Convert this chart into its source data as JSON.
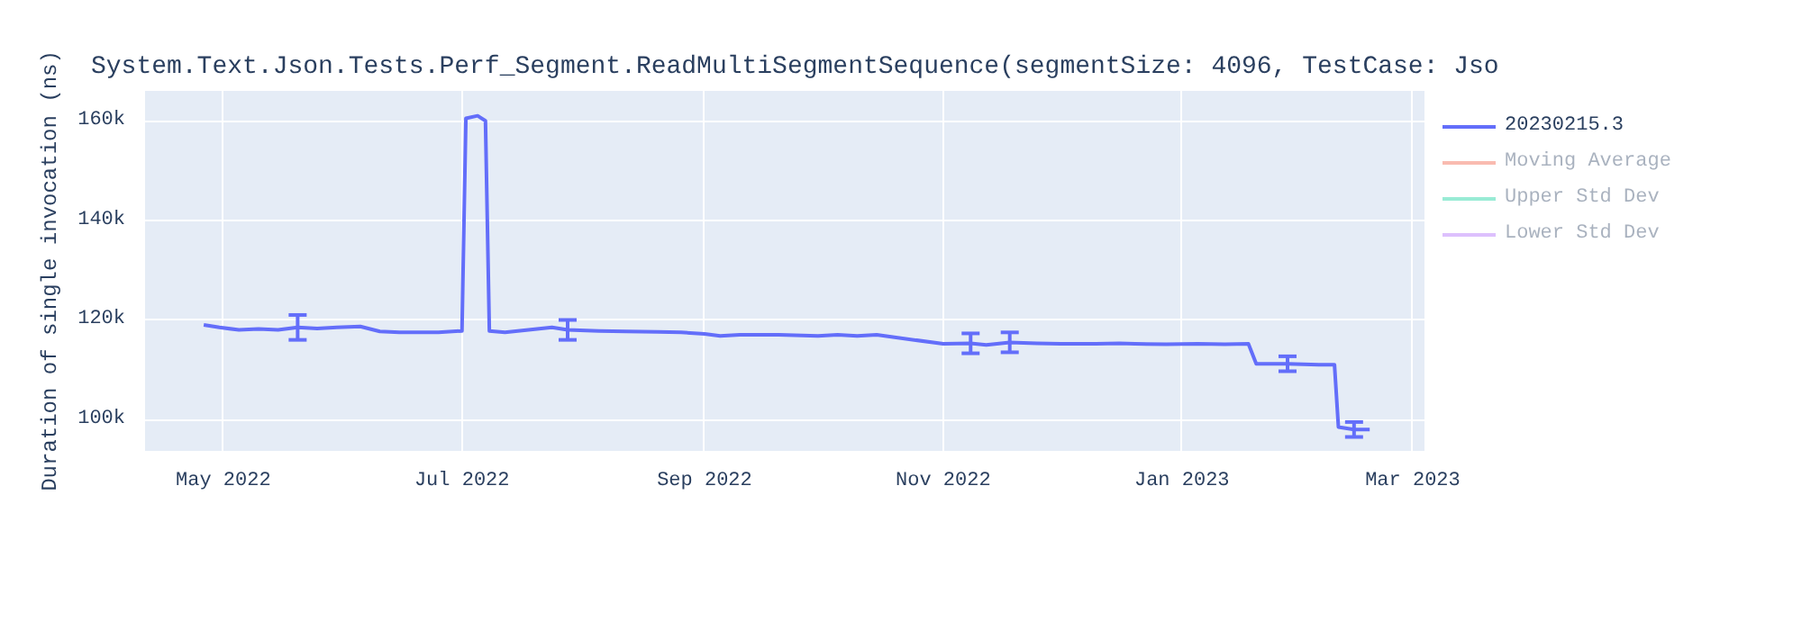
{
  "chart_data": {
    "type": "line",
    "title": "System.Text.Json.Tests.Perf_Segment.ReadMultiSegmentSequence(segmentSize: 4096, TestCase: Jso",
    "ylabel": "Duration of single invocation (ns)",
    "x": [
      "2022-04-26",
      "2022-04-30",
      "2022-05-05",
      "2022-05-10",
      "2022-05-15",
      "2022-05-20",
      "2022-05-25",
      "2022-05-30",
      "2022-06-05",
      "2022-06-10",
      "2022-06-15",
      "2022-06-20",
      "2022-06-25",
      "2022-07-01",
      "2022-07-02",
      "2022-07-05",
      "2022-07-07",
      "2022-07-08",
      "2022-07-12",
      "2022-07-18",
      "2022-07-24",
      "2022-07-28",
      "2022-08-05",
      "2022-08-12",
      "2022-08-20",
      "2022-08-26",
      "2022-09-01",
      "2022-09-05",
      "2022-09-10",
      "2022-09-20",
      "2022-09-30",
      "2022-10-05",
      "2022-10-10",
      "2022-10-15",
      "2022-11-01",
      "2022-11-08",
      "2022-11-12",
      "2022-11-18",
      "2022-11-25",
      "2022-12-01",
      "2022-12-10",
      "2022-12-16",
      "2022-12-20",
      "2022-12-28",
      "2023-01-05",
      "2023-01-12",
      "2023-01-18",
      "2023-01-20",
      "2023-01-28",
      "2023-02-05",
      "2023-02-09",
      "2023-02-10",
      "2023-02-14",
      "2023-02-18"
    ],
    "series": [
      {
        "name": "20230215.3",
        "color": "#636efa",
        "values": [
          119000,
          118500,
          118000,
          118200,
          118000,
          118500,
          118300,
          118500,
          118700,
          117700,
          117500,
          117500,
          117500,
          117800,
          160500,
          161000,
          160000,
          117800,
          117500,
          118000,
          118500,
          118000,
          117800,
          117700,
          117600,
          117500,
          117200,
          116800,
          117000,
          117000,
          116800,
          117000,
          116800,
          117000,
          115200,
          115300,
          115000,
          115500,
          115300,
          115200,
          115200,
          115300,
          115200,
          115100,
          115200,
          115100,
          115200,
          111200,
          111200,
          111000,
          111000,
          98500,
          98000,
          98000
        ],
        "errors": [
          null,
          null,
          null,
          null,
          null,
          2500,
          null,
          null,
          null,
          null,
          null,
          null,
          null,
          null,
          null,
          null,
          null,
          null,
          null,
          null,
          null,
          2000,
          null,
          null,
          null,
          null,
          null,
          null,
          null,
          null,
          null,
          null,
          null,
          null,
          null,
          2000,
          null,
          2000,
          null,
          null,
          null,
          null,
          null,
          null,
          null,
          null,
          null,
          null,
          1500,
          null,
          null,
          null,
          1500,
          null
        ]
      },
      {
        "name": "Moving Average",
        "color": "#ef553b",
        "values": [
          null,
          null,
          null,
          null,
          null,
          null,
          null,
          null,
          null,
          null,
          null,
          null,
          null,
          null,
          null,
          null,
          null,
          null,
          null,
          null,
          null,
          null,
          null,
          null,
          null,
          null,
          null,
          null,
          null,
          null,
          null,
          null,
          null,
          null,
          null,
          null,
          null,
          null,
          null,
          null,
          null,
          null,
          null,
          null,
          null,
          null,
          null,
          null,
          null,
          null,
          null,
          null,
          null,
          null
        ]
      },
      {
        "name": "Upper Std Dev",
        "color": "#00cc96",
        "values": [
          null,
          null,
          null,
          null,
          null,
          null,
          null,
          null,
          null,
          null,
          null,
          null,
          null,
          null,
          null,
          null,
          null,
          null,
          null,
          null,
          null,
          null,
          null,
          null,
          null,
          null,
          null,
          null,
          null,
          null,
          null,
          null,
          null,
          null,
          null,
          null,
          null,
          null,
          null,
          null,
          null,
          null,
          null,
          null,
          null,
          null,
          null,
          null,
          null,
          null,
          null,
          null,
          null,
          null
        ]
      },
      {
        "name": "Lower Std Dev",
        "color": "#ab63fa",
        "values": [
          null,
          null,
          null,
          null,
          null,
          null,
          null,
          null,
          null,
          null,
          null,
          null,
          null,
          null,
          null,
          null,
          null,
          null,
          null,
          null,
          null,
          null,
          null,
          null,
          null,
          null,
          null,
          null,
          null,
          null,
          null,
          null,
          null,
          null,
          null,
          null,
          null,
          null,
          null,
          null,
          null,
          null,
          null,
          null,
          null,
          null,
          null,
          null,
          null,
          null,
          null,
          null,
          null,
          null
        ]
      }
    ],
    "xlim": [
      "2022-04-11",
      "2023-03-04"
    ],
    "xticks": [
      {
        "value": "2022-05-01",
        "label": "May 2022"
      },
      {
        "value": "2022-07-01",
        "label": "Jul 2022"
      },
      {
        "value": "2022-09-01",
        "label": "Sep 2022"
      },
      {
        "value": "2022-11-01",
        "label": "Nov 2022"
      },
      {
        "value": "2023-01-01",
        "label": "Jan 2023"
      },
      {
        "value": "2023-03-01",
        "label": "Mar 2023"
      }
    ],
    "ylim": [
      93700,
      166000
    ],
    "yticks": [
      {
        "value": 100000,
        "label": "100k"
      },
      {
        "value": 120000,
        "label": "120k"
      },
      {
        "value": 140000,
        "label": "140k"
      },
      {
        "value": 160000,
        "label": "160k"
      }
    ],
    "grid": true,
    "legend": "right",
    "marker": "none",
    "line_style": "solid"
  }
}
